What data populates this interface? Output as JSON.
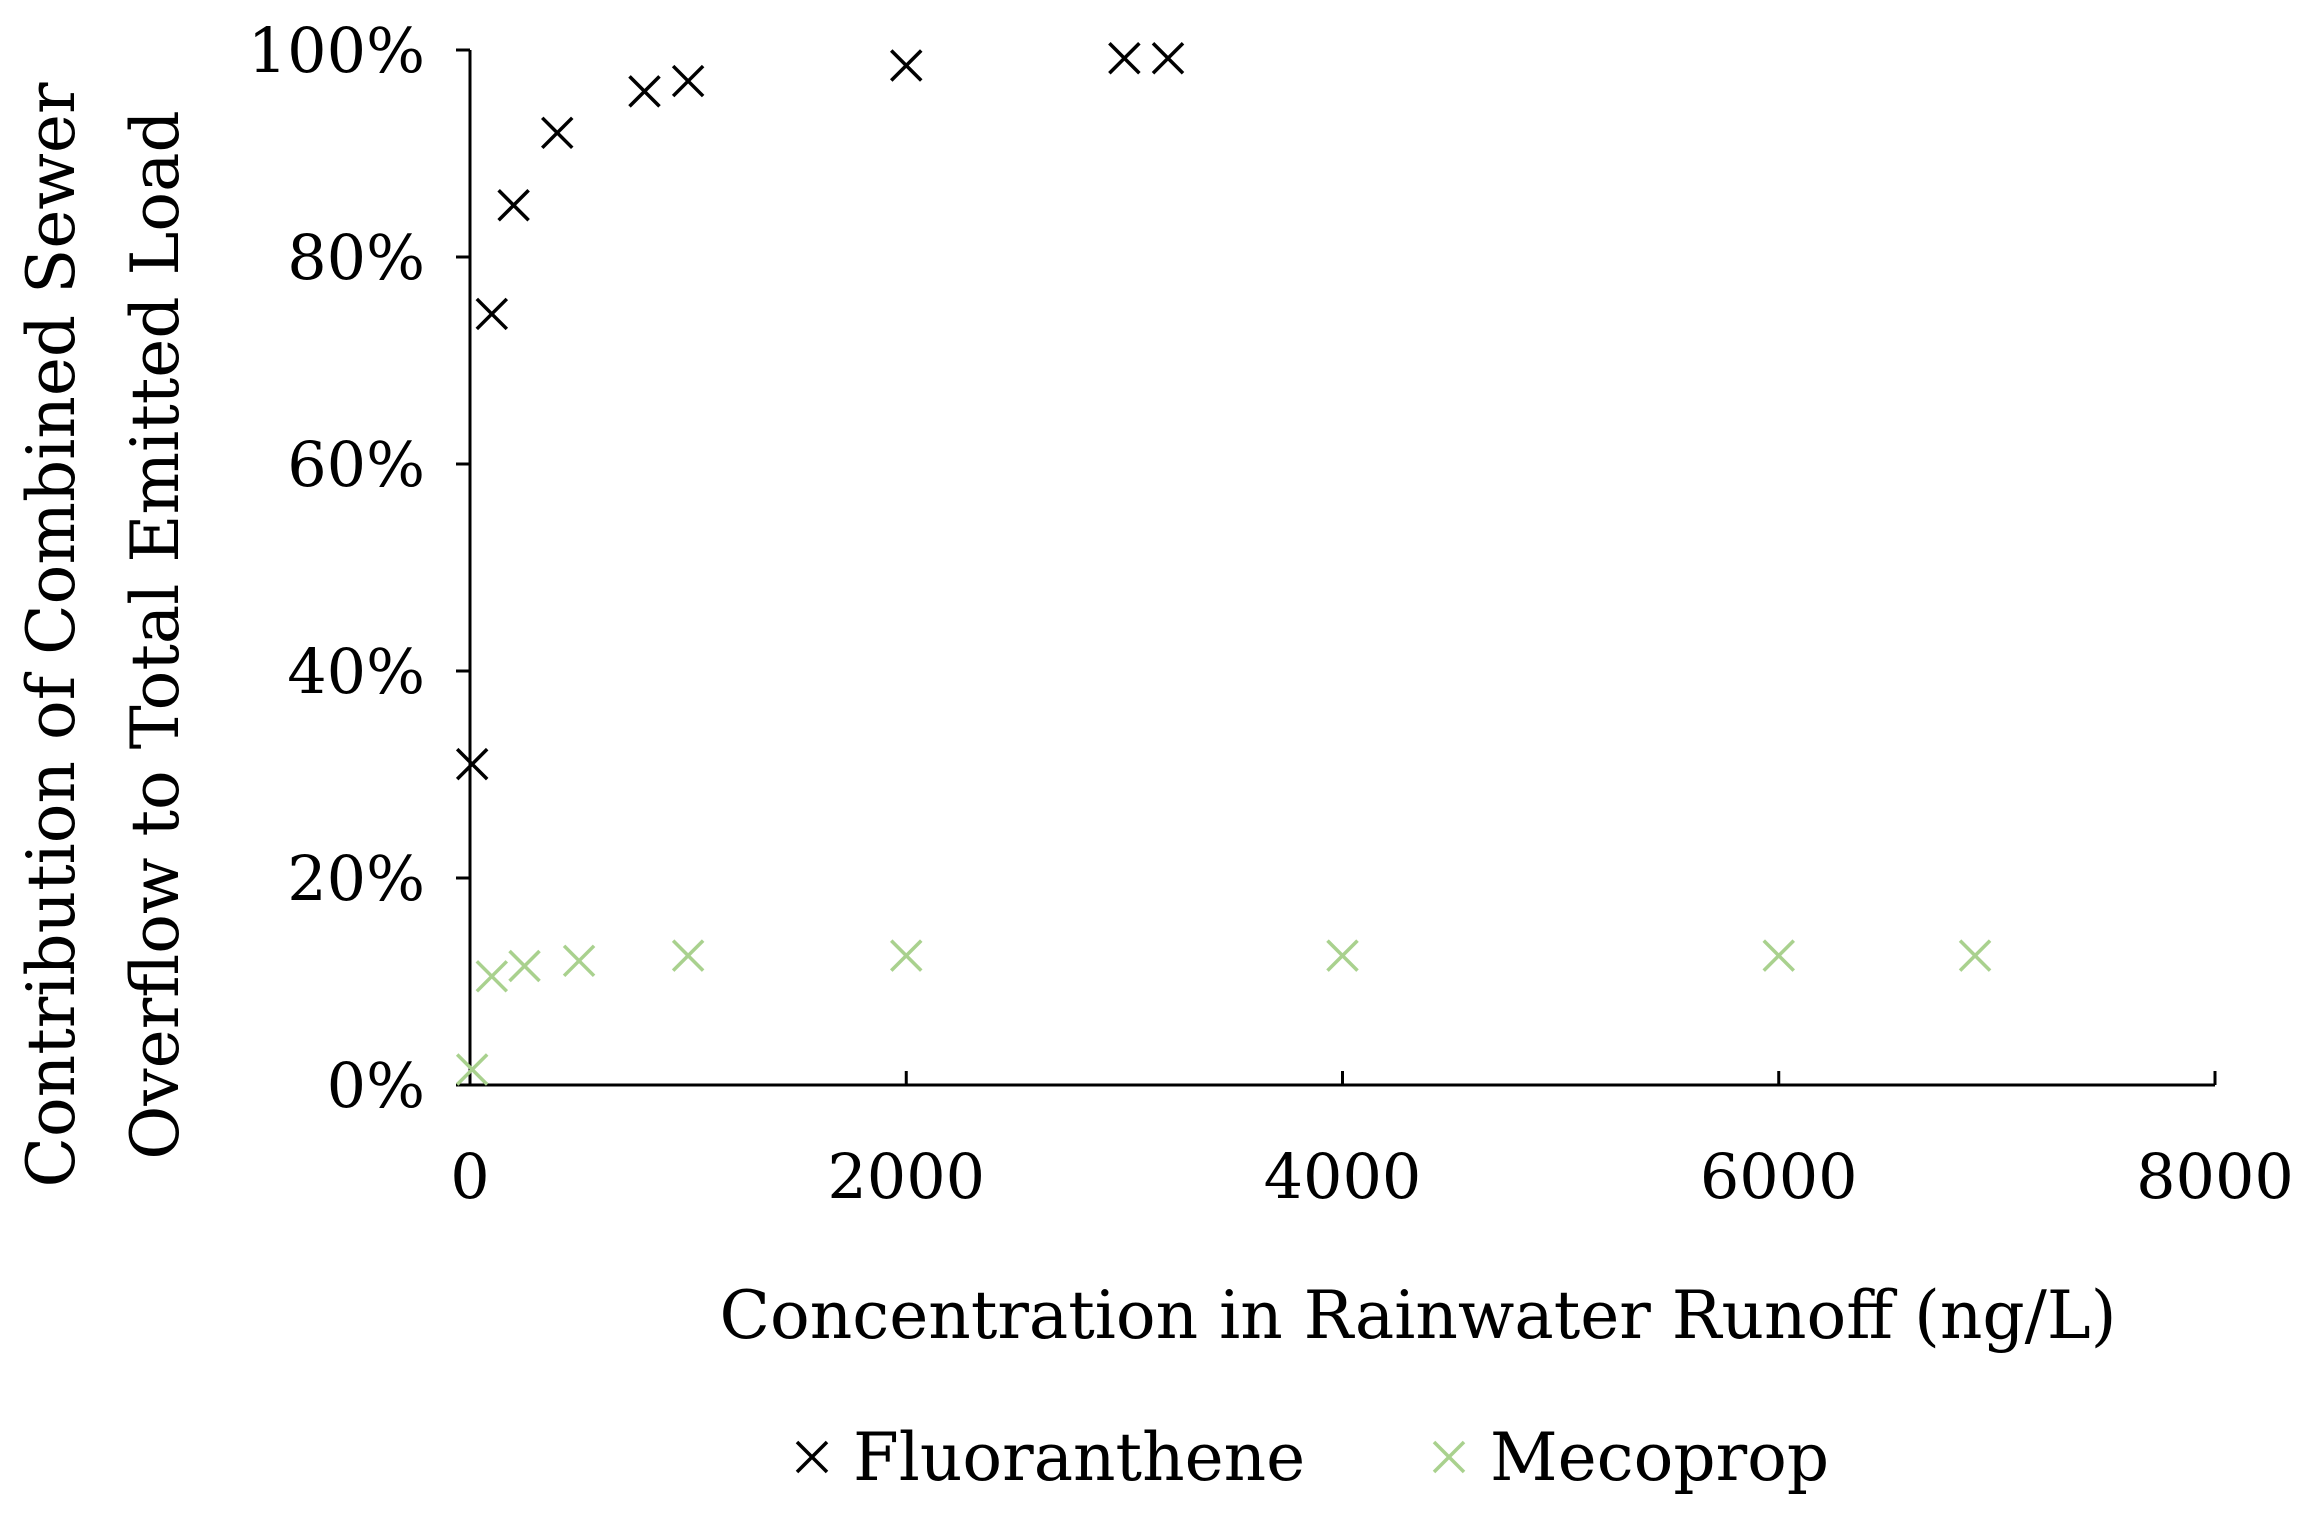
{
  "chart_data": {
    "type": "scatter",
    "title": "",
    "xlabel": "Concentration in Rainwater Runoff (ng/L)",
    "ylabel_lines": [
      "Contribution of Combined Sewer",
      "Overflow to Total Emitted Load"
    ],
    "xlim": [
      0,
      8000
    ],
    "ylim": [
      0,
      100
    ],
    "x_ticks": [
      "0",
      "2000",
      "4000",
      "6000",
      "8000"
    ],
    "x_tick_values": [
      0,
      2000,
      4000,
      6000,
      8000
    ],
    "y_ticks": [
      "0%",
      "20%",
      "40%",
      "60%",
      "80%",
      "100%"
    ],
    "y_tick_values": [
      0,
      20,
      40,
      60,
      80,
      100
    ],
    "grid": false,
    "legend_position": "bottom",
    "series": [
      {
        "name": "Fluoranthene",
        "color": "#000000",
        "marker": "x",
        "points": [
          {
            "x": 10,
            "y": 31
          },
          {
            "x": 100,
            "y": 74.5
          },
          {
            "x": 200,
            "y": 85
          },
          {
            "x": 400,
            "y": 92
          },
          {
            "x": 800,
            "y": 96
          },
          {
            "x": 1000,
            "y": 97
          },
          {
            "x": 2000,
            "y": 98.5
          },
          {
            "x": 3000,
            "y": 99.2
          },
          {
            "x": 3200,
            "y": 99.2
          }
        ]
      },
      {
        "name": "Mecoprop",
        "color": "#a9d18e",
        "marker": "x",
        "points": [
          {
            "x": 10,
            "y": 1.5
          },
          {
            "x": 100,
            "y": 10.5
          },
          {
            "x": 250,
            "y": 11.5
          },
          {
            "x": 500,
            "y": 12
          },
          {
            "x": 1000,
            "y": 12.5
          },
          {
            "x": 2000,
            "y": 12.5
          },
          {
            "x": 4000,
            "y": 12.5
          },
          {
            "x": 6000,
            "y": 12.5
          },
          {
            "x": 6900,
            "y": 12.5
          }
        ]
      }
    ]
  }
}
